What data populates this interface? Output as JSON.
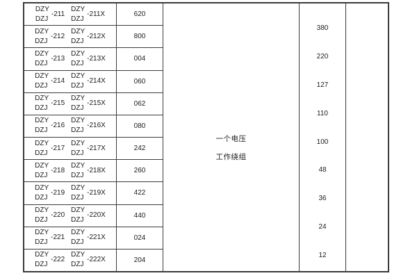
{
  "table": {
    "rows": [
      {
        "m1_top": "DZY",
        "m1_bot": "DZJ",
        "m1_suffix": "-211",
        "m2_top": "DZY",
        "m2_bot": "DZJ",
        "m2_suffix": "-211X",
        "code": "620"
      },
      {
        "m1_top": "DZY",
        "m1_bot": "DZJ",
        "m1_suffix": "-212",
        "m2_top": "DZY",
        "m2_bot": "DZJ",
        "m2_suffix": "-212X",
        "code": "800"
      },
      {
        "m1_top": "DZY",
        "m1_bot": "DZJ",
        "m1_suffix": "-213",
        "m2_top": "DZY",
        "m2_bot": "DZJ",
        "m2_suffix": "-213X",
        "code": "004"
      },
      {
        "m1_top": "DZY",
        "m1_bot": "DZJ",
        "m1_suffix": "-214",
        "m2_top": "DZY",
        "m2_bot": "DZJ",
        "m2_suffix": "-214X",
        "code": "060"
      },
      {
        "m1_top": "DZY",
        "m1_bot": "DZJ",
        "m1_suffix": "-215",
        "m2_top": "DZY",
        "m2_bot": "DZJ",
        "m2_suffix": "-215X",
        "code": "062"
      },
      {
        "m1_top": "DZY",
        "m1_bot": "DZJ",
        "m1_suffix": "-216",
        "m2_top": "DZY",
        "m2_bot": "DZJ",
        "m2_suffix": "-216X",
        "code": "080"
      },
      {
        "m1_top": "DZY",
        "m1_bot": "DZJ",
        "m1_suffix": "-217",
        "m2_top": "DZY",
        "m2_bot": "DZJ",
        "m2_suffix": "-217X",
        "code": "242"
      },
      {
        "m1_top": "DZY",
        "m1_bot": "DZJ",
        "m1_suffix": "-218",
        "m2_top": "DZY",
        "m2_bot": "DZJ",
        "m2_suffix": "-218X",
        "code": "260"
      },
      {
        "m1_top": "DZY",
        "m1_bot": "DZJ",
        "m1_suffix": "-219",
        "m2_top": "DZY",
        "m2_bot": "DZJ",
        "m2_suffix": "-219X",
        "code": "422"
      },
      {
        "m1_top": "DZY",
        "m1_bot": "DZJ",
        "m1_suffix": "-220",
        "m2_top": "DZY",
        "m2_bot": "DZJ",
        "m2_suffix": "-220X",
        "code": "440"
      },
      {
        "m1_top": "DZY",
        "m1_bot": "DZJ",
        "m1_suffix": "-221",
        "m2_top": "DZY",
        "m2_bot": "DZJ",
        "m2_suffix": "-221X",
        "code": "024"
      },
      {
        "m1_top": "DZY",
        "m1_bot": "DZJ",
        "m1_suffix": "-222",
        "m2_top": "DZY",
        "m2_bot": "DZJ",
        "m2_suffix": "-222X",
        "code": "204"
      }
    ],
    "winding_cell": {
      "line1": "一个电压",
      "line2": "工作绕组"
    },
    "voltages": [
      "380",
      "220",
      "127",
      "110",
      "100",
      "48",
      "36",
      "24",
      "12"
    ],
    "colors": {
      "border": "#3a3a3a",
      "text": "#1a1a1a",
      "background": "#ffffff"
    }
  }
}
